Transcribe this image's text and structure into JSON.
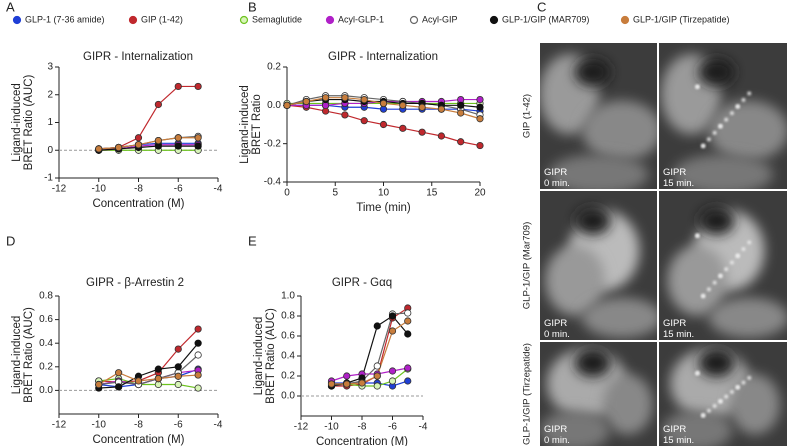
{
  "chart_data": [
    {
      "type": "line",
      "panel": "A",
      "title": "GIPR - Internalization",
      "xlabel": "Concentration  (M)",
      "ylabel": [
        "Ligand-induced",
        "BRET Ratio (AUC)"
      ],
      "x": [
        -10,
        -9,
        -8,
        -7,
        -6,
        -5
      ],
      "xlim": [
        -12,
        -4
      ],
      "xticks": [
        -12,
        -10,
        -8,
        -6,
        -4
      ],
      "ylim": [
        -1,
        3
      ],
      "yticks": [
        -1,
        0,
        1,
        2,
        3
      ],
      "zero_line": true,
      "series": [
        {
          "name": "GLP-1 (7-36 amide)",
          "color": "#1f3fd6",
          "fill": "#1f3fd6",
          "values": [
            0.05,
            0.1,
            0.2,
            0.25,
            0.25,
            0.25
          ]
        },
        {
          "name": "GIP (1-42)",
          "color": "#c0282d",
          "fill": "#c0282d",
          "values": [
            0.05,
            0.1,
            0.45,
            1.65,
            2.3,
            2.3
          ]
        },
        {
          "name": "Semaglutide",
          "color": "#6cc21e",
          "fill": "#d8f5b8",
          "values": [
            0.0,
            0.0,
            0.0,
            0.0,
            0.0,
            0.0
          ]
        },
        {
          "name": "Acyl-GLP-1",
          "color": "#b020c8",
          "fill": "#b020c8",
          "values": [
            0.0,
            0.05,
            0.15,
            0.2,
            0.2,
            0.2
          ]
        },
        {
          "name": "Acyl-GIP",
          "color": "#666666",
          "fill": "#ffffff",
          "values": [
            0.05,
            0.1,
            0.2,
            0.35,
            0.45,
            0.5
          ]
        },
        {
          "name": "GLP-1/GIP (MAR709)",
          "color": "#111111",
          "fill": "#111111",
          "values": [
            0.0,
            0.05,
            0.1,
            0.15,
            0.15,
            0.15
          ]
        },
        {
          "name": "GLP-1/GIP (Tirzepatide)",
          "color": "#c87d3c",
          "fill": "#c87d3c",
          "values": [
            0.05,
            0.1,
            0.2,
            0.35,
            0.45,
            0.45
          ]
        }
      ]
    },
    {
      "type": "line",
      "panel": "B",
      "title": "GIPR - Internalization",
      "xlabel": "Time (min)",
      "ylabel": [
        "Ligand-induced",
        "BRET Ratio"
      ],
      "x": [
        0,
        2,
        4,
        6,
        8,
        10,
        12,
        14,
        16,
        18,
        20
      ],
      "xlim": [
        0,
        20
      ],
      "xticks": [
        0,
        5,
        10,
        15,
        20
      ],
      "ylim": [
        -0.4,
        0.2
      ],
      "yticks": [
        -0.4,
        -0.2,
        {
          "value": 0,
          "label": "0.0"
        },
        0.2
      ],
      "series": [
        {
          "values": [
            0,
            0,
            0,
            -0.01,
            -0.01,
            -0.02,
            -0.02,
            -0.02,
            -0.02,
            -0.02,
            -0.03
          ]
        },
        {
          "values": [
            0,
            -0.01,
            -0.03,
            -0.05,
            -0.08,
            -0.1,
            -0.12,
            -0.14,
            -0.16,
            -0.19,
            -0.21
          ]
        },
        {
          "values": [
            0.01,
            0.01,
            0.01,
            0.01,
            0.01,
            0.01,
            0.01,
            0.01,
            0.01,
            0.01,
            0.01
          ]
        },
        {
          "values": [
            0,
            0,
            0,
            0.01,
            0.01,
            0.02,
            0.02,
            0.02,
            0.02,
            0.03,
            0.03
          ]
        },
        {
          "values": [
            0,
            0.03,
            0.05,
            0.05,
            0.04,
            0.03,
            0.02,
            0.01,
            0,
            -0.02,
            -0.05
          ]
        },
        {
          "values": [
            0,
            0.02,
            0.03,
            0.03,
            0.02,
            0.02,
            0.01,
            0.01,
            0,
            0,
            -0.01
          ]
        },
        {
          "values": [
            0,
            0.02,
            0.04,
            0.04,
            0.03,
            0.01,
            0,
            -0.01,
            -0.02,
            -0.04,
            -0.07
          ]
        }
      ]
    },
    {
      "type": "line",
      "panel": "D",
      "title": "GIPR - β-Arrestin 2",
      "xlabel": "Concentration  (M)",
      "ylabel": [
        "Ligand-induced",
        "BRET Ratio (AUC)"
      ],
      "x": [
        -10,
        -9,
        -8,
        -7,
        -6,
        -5
      ],
      "xlim": [
        -12,
        -4
      ],
      "xticks": [
        -12,
        -10,
        -8,
        -6,
        -4
      ],
      "ylim": [
        -0.2,
        0.8
      ],
      "yticks": [
        {
          "value": 0,
          "label": "0.0"
        },
        0.2,
        0.4,
        0.6,
        0.8
      ],
      "zero_line": true,
      "series": [
        {
          "values": [
            0.05,
            0.03,
            0.05,
            0.1,
            0.12,
            0.18
          ]
        },
        {
          "values": [
            0.08,
            0.07,
            0.08,
            0.15,
            0.35,
            0.52
          ]
        },
        {
          "values": [
            0.08,
            0.1,
            0.05,
            0.05,
            0.05,
            0.02
          ]
        },
        {
          "values": [
            0.05,
            0.08,
            0.05,
            0.1,
            0.15,
            0.17
          ]
        },
        {
          "values": [
            0.05,
            0.07,
            0.05,
            0.1,
            0.15,
            0.3
          ]
        },
        {
          "values": [
            0.02,
            0.03,
            0.12,
            0.18,
            0.2,
            0.4
          ]
        },
        {
          "values": [
            0.05,
            0.15,
            0.08,
            0.1,
            0.12,
            0.13
          ]
        }
      ]
    },
    {
      "type": "line",
      "panel": "E",
      "title": "GIPR - Gαq",
      "xlabel": "Concentration  (M)",
      "ylabel": [
        "Ligand-induced",
        "BRET Ratio (AUC)"
      ],
      "x": [
        -10,
        -9,
        -8,
        -7,
        -6,
        -5
      ],
      "xlim": [
        -12,
        -4
      ],
      "xticks": [
        -12,
        -10,
        -8,
        -6,
        -4
      ],
      "ylim": [
        -0.2,
        1.0
      ],
      "yticks": [
        {
          "value": 0,
          "label": "0.0"
        },
        0.2,
        0.4,
        0.6,
        0.8,
        {
          "value": 1,
          "label": "1.0"
        }
      ],
      "zero_line": true,
      "series": [
        {
          "values": [
            0.13,
            0.13,
            0.13,
            0.13,
            0.1,
            0.15
          ]
        },
        {
          "values": [
            0.1,
            0.1,
            0.12,
            0.2,
            0.78,
            0.88
          ]
        },
        {
          "values": [
            0.12,
            0.12,
            0.1,
            0.1,
            0.15,
            0.27
          ]
        },
        {
          "values": [
            0.15,
            0.2,
            0.22,
            0.22,
            0.25,
            0.28
          ]
        },
        {
          "values": [
            0.1,
            0.12,
            0.15,
            0.3,
            0.82,
            0.83
          ]
        },
        {
          "values": [
            0.1,
            0.13,
            0.18,
            0.7,
            0.8,
            0.62
          ]
        },
        {
          "values": [
            0.12,
            0.12,
            0.13,
            0.2,
            0.65,
            0.75
          ]
        }
      ]
    }
  ],
  "panel_c": {
    "panel": "C",
    "rows": [
      {
        "label": "GIP (1-42)",
        "images": [
          {
            "target": "GIPR",
            "time": "0 min."
          },
          {
            "target": "GIPR",
            "time": "15 min."
          }
        ]
      },
      {
        "label": "GLP-1/GIP (Mar709)",
        "images": [
          {
            "target": "GIPR",
            "time": "0 min."
          },
          {
            "target": "GIPR",
            "time": "15 min."
          }
        ]
      },
      {
        "label": "GLP-1/GIP (Tirzepatide)",
        "images": [
          {
            "target": "GIPR",
            "time": "0 min."
          },
          {
            "target": "GIPR",
            "time": "15 min."
          }
        ]
      }
    ]
  }
}
